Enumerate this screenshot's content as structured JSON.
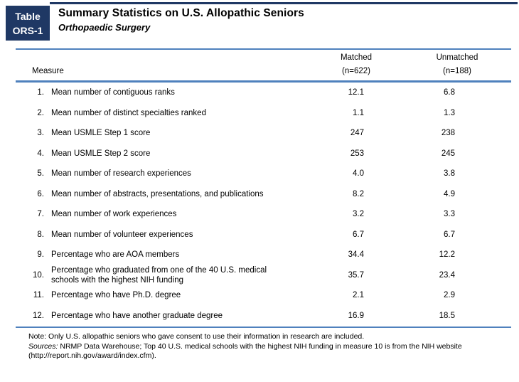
{
  "header": {
    "tag_line1": "Table",
    "tag_line2": "ORS-1",
    "title": "Summary Statistics on U.S. Allopathic Seniors",
    "subtitle": "Orthopaedic Surgery"
  },
  "table": {
    "measure_header": "Measure",
    "columns": [
      {
        "label": "Matched",
        "n": "(n=622)"
      },
      {
        "label": "Unmatched",
        "n": "(n=188)"
      }
    ],
    "rows": [
      {
        "num": "1.",
        "measure": "Mean number of contiguous ranks",
        "matched": "12.1",
        "unmatched": "6.8"
      },
      {
        "num": "2.",
        "measure": "Mean number of distinct specialties ranked",
        "matched": "1.1",
        "unmatched": "1.3"
      },
      {
        "num": "3.",
        "measure": "Mean USMLE Step 1 score",
        "matched": "247",
        "unmatched": "238"
      },
      {
        "num": "4.",
        "measure": "Mean USMLE Step 2 score",
        "matched": "253",
        "unmatched": "245"
      },
      {
        "num": "5.",
        "measure": "Mean number of research experiences",
        "matched": "4.0",
        "unmatched": "3.8"
      },
      {
        "num": "6.",
        "measure": "Mean number of abstracts, presentations, and publications",
        "matched": "8.2",
        "unmatched": "4.9"
      },
      {
        "num": "7.",
        "measure": "Mean number of work experiences",
        "matched": "3.2",
        "unmatched": "3.3"
      },
      {
        "num": "8.",
        "measure": "Mean number of volunteer experiences",
        "matched": "6.7",
        "unmatched": "6.7"
      },
      {
        "num": "9.",
        "measure": "Percentage who are AOA members",
        "matched": "34.4",
        "unmatched": "12.2"
      },
      {
        "num": "10.",
        "measure": "Percentage who graduated from one of the 40 U.S. medical\nschools with the highest NIH funding",
        "matched": "35.7",
        "unmatched": "23.4"
      },
      {
        "num": "11.",
        "measure": "Percentage who have Ph.D. degree",
        "matched": "2.1",
        "unmatched": "2.9"
      },
      {
        "num": "12.",
        "measure": "Percentage who have another graduate degree",
        "matched": "16.9",
        "unmatched": "18.5"
      }
    ]
  },
  "notes": {
    "note": "Note: Only U.S. allopathic seniors who gave consent to use their information in research are included.",
    "sources_label": "Sources:",
    "sources_text": " NRMP Data Warehouse; Top 40 U.S. medical schools with the highest NIH funding in measure 10 is from the NIH website (http://report.nih.gov/award/index.cfm)."
  },
  "colors": {
    "navy": "#1F3864",
    "rule": "#4F81BD"
  }
}
